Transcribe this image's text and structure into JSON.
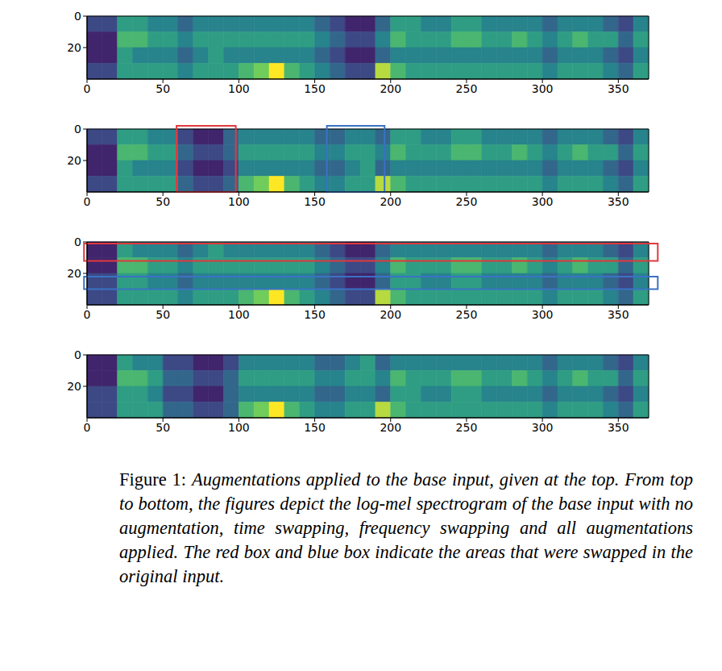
{
  "chart_data": [
    {
      "type": "heatmap",
      "color": "viridis",
      "zlim": [
        0,
        9
      ],
      "xlim": [
        0,
        370
      ],
      "ylim": [
        40,
        0
      ],
      "xticks": [
        0,
        50,
        100,
        150,
        200,
        250,
        300,
        350
      ],
      "yticks": [
        0,
        20
      ],
      "cells": [
        [
          2,
          2,
          5,
          5,
          4,
          4,
          3,
          4,
          4,
          4,
          4,
          4,
          4,
          4,
          4,
          3,
          2,
          1,
          1,
          3,
          5,
          5,
          4,
          4,
          5,
          5,
          4,
          4,
          4,
          4,
          3,
          4,
          4,
          4,
          3,
          2,
          4
        ],
        [
          1,
          1,
          6,
          6,
          5,
          5,
          4,
          5,
          5,
          5,
          5,
          5,
          5,
          5,
          5,
          4,
          3,
          2,
          2,
          4,
          6,
          5,
          5,
          5,
          6,
          6,
          5,
          5,
          6,
          5,
          4,
          5,
          6,
          5,
          5,
          3,
          5
        ],
        [
          1,
          1,
          5,
          4,
          4,
          4,
          3,
          4,
          5,
          4,
          4,
          4,
          4,
          4,
          4,
          3,
          2,
          1,
          1,
          3,
          4,
          4,
          4,
          4,
          4,
          4,
          4,
          4,
          4,
          4,
          3,
          4,
          4,
          4,
          3,
          2,
          4
        ],
        [
          2,
          2,
          5,
          5,
          5,
          5,
          4,
          5,
          5,
          5,
          6,
          7,
          9,
          6,
          5,
          4,
          3,
          2,
          2,
          8,
          6,
          5,
          5,
          5,
          5,
          5,
          5,
          5,
          5,
          5,
          4,
          5,
          5,
          5,
          4,
          3,
          5
        ]
      ],
      "boxes": []
    },
    {
      "type": "heatmap",
      "color": "viridis",
      "zlim": [
        0,
        9
      ],
      "xlim": [
        0,
        370
      ],
      "ylim": [
        40,
        0
      ],
      "xticks": [
        0,
        50,
        100,
        150,
        200,
        250,
        300,
        350
      ],
      "yticks": [
        0,
        20
      ],
      "cells": [
        [
          2,
          2,
          5,
          5,
          4,
          4,
          2,
          1,
          1,
          3,
          4,
          4,
          4,
          4,
          4,
          3,
          3,
          4,
          4,
          3,
          5,
          5,
          4,
          4,
          5,
          5,
          4,
          4,
          4,
          4,
          3,
          4,
          4,
          4,
          3,
          2,
          4
        ],
        [
          1,
          1,
          6,
          6,
          5,
          5,
          3,
          2,
          2,
          3,
          5,
          5,
          5,
          5,
          5,
          4,
          4,
          5,
          5,
          4,
          6,
          5,
          5,
          5,
          6,
          6,
          5,
          5,
          6,
          5,
          4,
          5,
          6,
          5,
          5,
          3,
          5
        ],
        [
          1,
          1,
          5,
          4,
          4,
          4,
          2,
          1,
          1,
          2,
          4,
          4,
          4,
          4,
          4,
          3,
          3,
          4,
          5,
          3,
          4,
          4,
          4,
          4,
          4,
          4,
          4,
          4,
          4,
          4,
          3,
          4,
          4,
          4,
          3,
          2,
          4
        ],
        [
          2,
          2,
          5,
          5,
          5,
          5,
          3,
          2,
          2,
          3,
          6,
          7,
          9,
          6,
          5,
          4,
          4,
          5,
          5,
          8,
          6,
          5,
          5,
          5,
          5,
          5,
          5,
          5,
          5,
          5,
          4,
          5,
          5,
          5,
          4,
          3,
          5
        ]
      ],
      "boxes": [
        {
          "color": "#e0393e",
          "x": [
            59,
            98
          ],
          "y": [
            -2,
            40
          ]
        },
        {
          "color": "#3a72c4",
          "x": [
            158,
            196
          ],
          "y": [
            -2,
            40
          ]
        }
      ]
    },
    {
      "type": "heatmap",
      "color": "viridis",
      "zlim": [
        0,
        9
      ],
      "xlim": [
        0,
        370
      ],
      "ylim": [
        40,
        0
      ],
      "xticks": [
        0,
        50,
        100,
        150,
        200,
        250,
        300,
        350
      ],
      "yticks": [
        0,
        20
      ],
      "cells": [
        [
          1,
          1,
          5,
          4,
          4,
          4,
          3,
          4,
          5,
          4,
          4,
          4,
          4,
          4,
          4,
          3,
          2,
          1,
          1,
          3,
          4,
          4,
          4,
          4,
          4,
          4,
          4,
          4,
          4,
          4,
          3,
          4,
          4,
          4,
          3,
          2,
          4
        ],
        [
          1,
          1,
          6,
          6,
          5,
          5,
          4,
          5,
          5,
          5,
          5,
          5,
          5,
          5,
          5,
          4,
          3,
          2,
          2,
          4,
          6,
          5,
          5,
          5,
          6,
          6,
          5,
          5,
          6,
          5,
          4,
          5,
          6,
          5,
          5,
          3,
          5
        ],
        [
          2,
          2,
          5,
          5,
          4,
          4,
          3,
          4,
          4,
          4,
          4,
          4,
          4,
          4,
          4,
          3,
          2,
          1,
          1,
          3,
          5,
          5,
          4,
          4,
          5,
          5,
          4,
          4,
          4,
          4,
          3,
          4,
          4,
          4,
          3,
          2,
          4
        ],
        [
          2,
          2,
          5,
          5,
          5,
          5,
          4,
          5,
          5,
          5,
          6,
          7,
          9,
          6,
          5,
          4,
          3,
          2,
          2,
          8,
          6,
          5,
          5,
          5,
          5,
          5,
          5,
          5,
          5,
          5,
          4,
          5,
          5,
          5,
          4,
          3,
          5
        ]
      ],
      "boxes": [
        {
          "color": "#e0393e",
          "x": [
            -2,
            376
          ],
          "y": [
            1,
            12
          ]
        },
        {
          "color": "#3a72c4",
          "x": [
            -2,
            376
          ],
          "y": [
            22,
            30
          ]
        }
      ]
    },
    {
      "type": "heatmap",
      "color": "viridis",
      "zlim": [
        0,
        9
      ],
      "xlim": [
        0,
        370
      ],
      "ylim": [
        40,
        0
      ],
      "xticks": [
        0,
        50,
        100,
        150,
        200,
        250,
        300,
        350
      ],
      "yticks": [
        0,
        20
      ],
      "cells": [
        [
          1,
          1,
          5,
          4,
          4,
          2,
          2,
          1,
          1,
          2,
          4,
          4,
          4,
          4,
          4,
          3,
          3,
          4,
          5,
          3,
          4,
          4,
          4,
          4,
          4,
          4,
          4,
          4,
          4,
          4,
          3,
          4,
          4,
          4,
          3,
          2,
          4
        ],
        [
          1,
          1,
          6,
          6,
          5,
          3,
          3,
          2,
          2,
          3,
          5,
          5,
          5,
          5,
          5,
          4,
          4,
          5,
          5,
          4,
          6,
          5,
          5,
          5,
          6,
          6,
          5,
          5,
          6,
          5,
          4,
          5,
          6,
          5,
          5,
          3,
          5
        ],
        [
          2,
          2,
          5,
          5,
          4,
          2,
          2,
          1,
          1,
          3,
          4,
          4,
          4,
          4,
          4,
          3,
          3,
          4,
          4,
          3,
          5,
          5,
          4,
          4,
          5,
          5,
          4,
          4,
          4,
          4,
          3,
          4,
          4,
          4,
          3,
          2,
          4
        ],
        [
          2,
          2,
          5,
          5,
          5,
          3,
          3,
          2,
          2,
          3,
          6,
          7,
          9,
          6,
          5,
          4,
          4,
          5,
          5,
          8,
          6,
          5,
          5,
          5,
          5,
          5,
          5,
          5,
          5,
          5,
          4,
          5,
          5,
          5,
          4,
          3,
          5
        ]
      ],
      "boxes": []
    }
  ],
  "caption": {
    "label": "Figure 1:",
    "text": "Augmentations applied to the base input, given at the top. From top to bottom, the figures depict the log-mel spectrogram of the base input with no augmentation, time swapping, frequency swapping and all augmentations applied. The red box and blue box indicate the areas that were swapped in the original input."
  }
}
